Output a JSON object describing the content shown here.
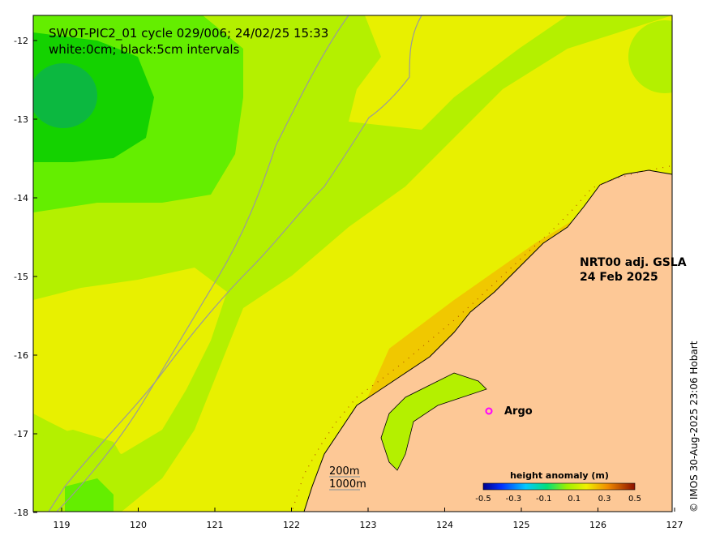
{
  "header": {
    "title": "SWOT-PIC2_01 cycle 029/006; 24/02/25 15:33",
    "subtitle": "white:0cm; black:5cm intervals"
  },
  "gsla_label": {
    "line1": "NRT00 adj. GSLA",
    "line2": "24 Feb 2025"
  },
  "argo": {
    "label": "Argo",
    "marker_color": "#ff00ff"
  },
  "bathymetry_legend": {
    "shallow": "200m",
    "deep": "1000m"
  },
  "colorbar": {
    "title": "height anomaly (m)",
    "ticks": [
      "-0.5",
      "-0.3",
      "-0.1",
      "0.1",
      "0.3",
      "0.5"
    ]
  },
  "axes": {
    "x_ticks": [
      "119",
      "120",
      "121",
      "122",
      "123",
      "124",
      "125",
      "126",
      "127"
    ],
    "y_ticks": [
      "-12",
      "-13",
      "-14",
      "-15",
      "-16",
      "-17",
      "-18"
    ]
  },
  "copyright": "© IMOS 30-Aug-2025 23:06 Hobart",
  "colors": {
    "land": "#fdc896",
    "field_yellow": "#e8f000",
    "field_lime": "#b4f000",
    "field_green": "#64ee00",
    "field_dark_green": "#14d200",
    "field_darker_green": "#0cb840",
    "field_orange": "#f0c800",
    "bathy_line": "#9a9a9a",
    "argo": "#ff00ff"
  }
}
